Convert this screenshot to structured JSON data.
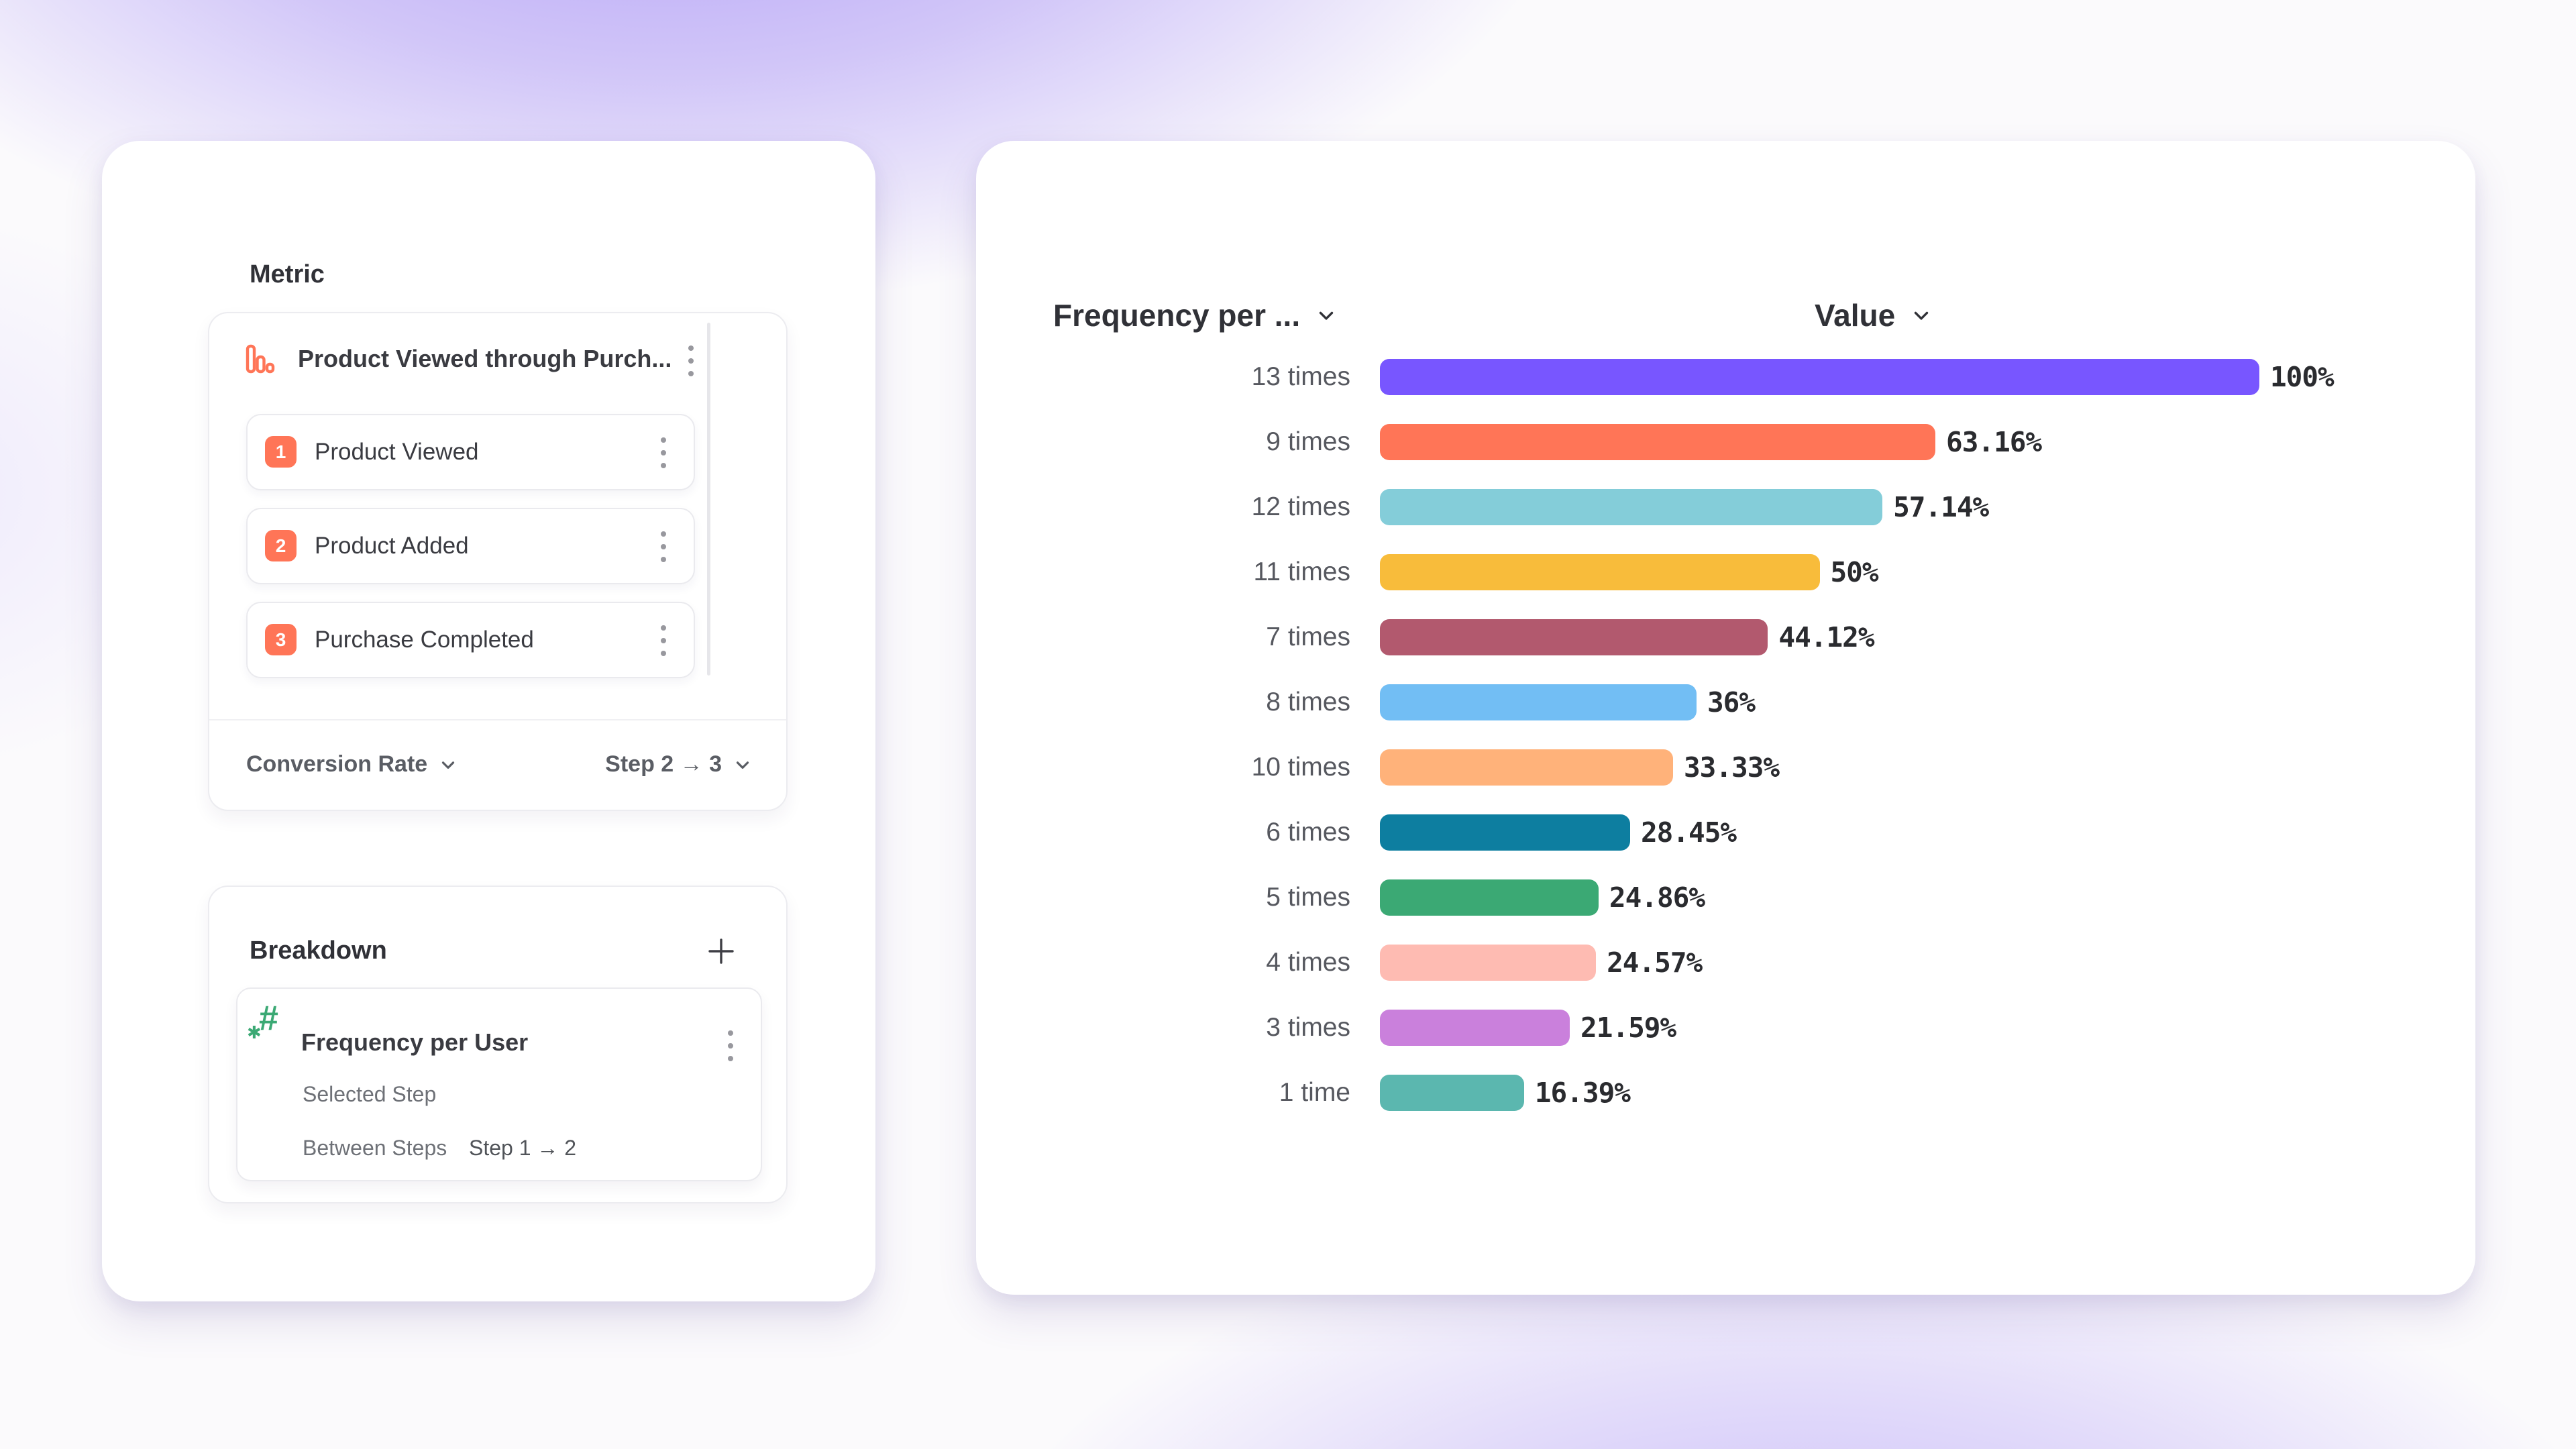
{
  "colors": {
    "accent_coral": "#FF7557",
    "accent_green": "#3BA974",
    "card_bg": "#FFFFFF",
    "text_dark": "#303137",
    "text_gray": "#56585F",
    "background_glow_purple": "#7856FF"
  },
  "metric_panel": {
    "title": "Metric",
    "funnel": {
      "name": "Product Viewed through Purch...",
      "steps": [
        {
          "num": "1",
          "label": "Product Viewed"
        },
        {
          "num": "2",
          "label": "Product Added"
        },
        {
          "num": "3",
          "label": "Purchase Completed"
        }
      ]
    },
    "measurement": "Conversion Rate",
    "step_range": "Step 2 → 3"
  },
  "breakdown_panel": {
    "title": "Breakdown",
    "property": {
      "name": "Frequency per User",
      "selected_step_label": "Selected Step",
      "between_steps_label": "Between Steps",
      "between_steps_value": "Step 1 → 2"
    }
  },
  "chart": {
    "column1_header": "Frequency per ...",
    "column2_header": "Value"
  },
  "chart_data": {
    "type": "bar",
    "orientation": "horizontal",
    "title": "",
    "xlabel": "Value",
    "ylabel": "Frequency per ...",
    "xlim": [
      0,
      100
    ],
    "grid": false,
    "legend": false,
    "categories": [
      "13 times",
      "9 times",
      "12 times",
      "11 times",
      "7 times",
      "8 times",
      "10 times",
      "6 times",
      "5 times",
      "4 times",
      "3 times",
      "1 time"
    ],
    "values": [
      100,
      63.16,
      57.14,
      50,
      44.12,
      36,
      33.33,
      28.45,
      24.86,
      24.57,
      21.59,
      16.39
    ],
    "value_labels": [
      "100%",
      "63.16%",
      "57.14%",
      "50%",
      "44.12%",
      "36%",
      "33.33%",
      "28.45%",
      "24.86%",
      "24.57%",
      "21.59%",
      "16.39%"
    ],
    "bar_colors": [
      "#7856FF",
      "#FF7557",
      "#84CDD9",
      "#F8BC3B",
      "#B2596E",
      "#72BEF4",
      "#FFB27A",
      "#0D7EA0",
      "#3BA974",
      "#FEBBB2",
      "#CA80DC",
      "#5BB7AF"
    ]
  }
}
